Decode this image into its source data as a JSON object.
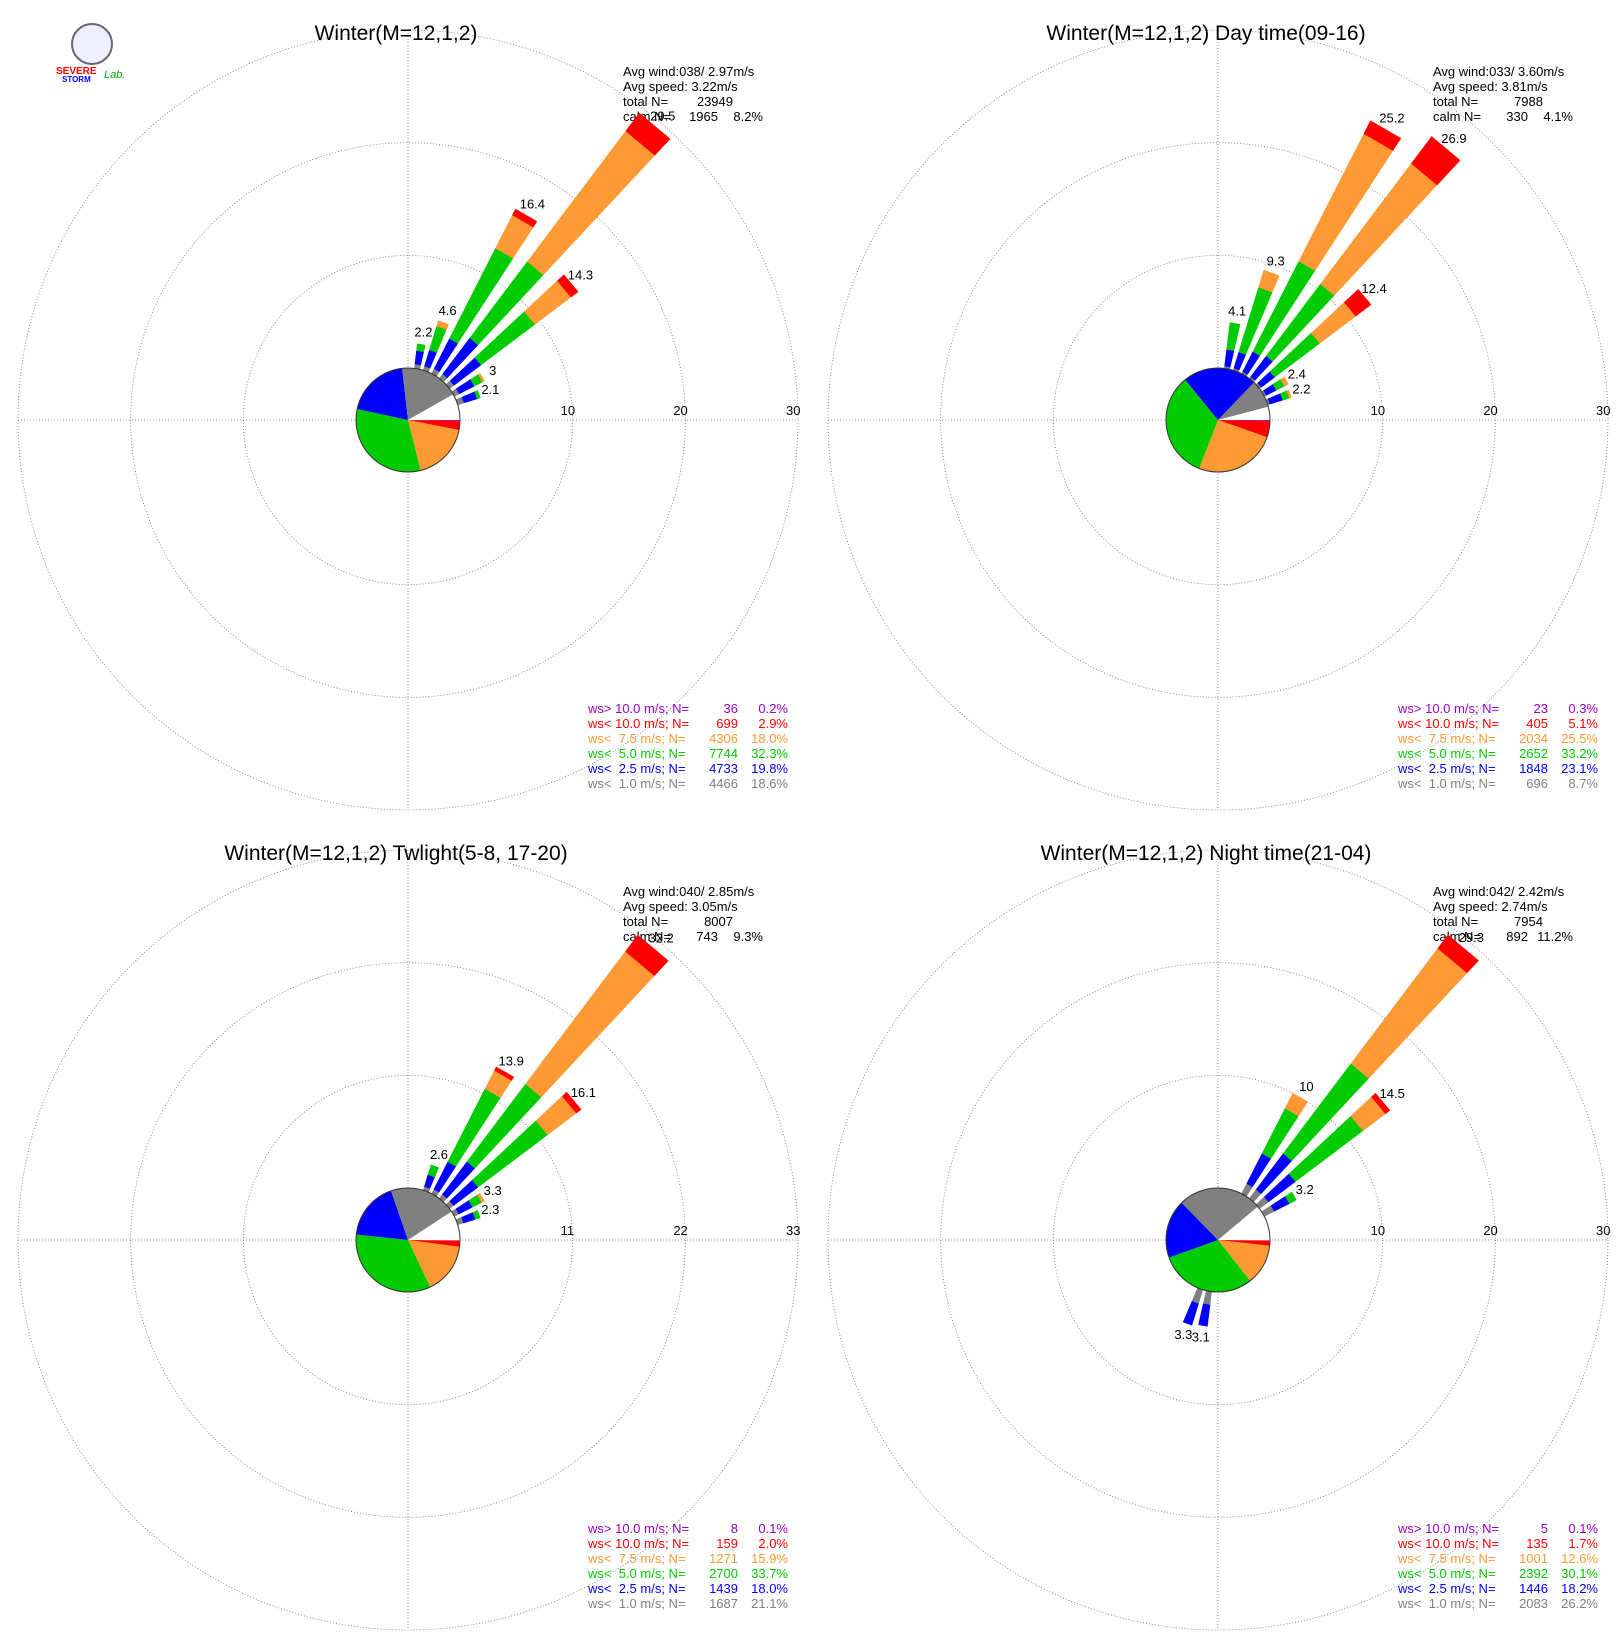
{
  "logo": [
    "SEVERE",
    "STORM",
    "Lab."
  ],
  "chart_data": [
    {
      "type": "windrose",
      "title": "Winter(M=12,1,2)",
      "stats": [
        "Avg wind:038/ 2.97m/s",
        "Avg speed: 3.22m/s"
      ],
      "total": {
        "label": "total N=",
        "n": 23949
      },
      "calm": {
        "label": "calm N=",
        "n": 1965,
        "value": 8.2,
        "value_label": "8.2%"
      },
      "classes": [
        "ws> 10.0 m/s; N=",
        "ws< 10.0 m/s; N=",
        "ws<  7.5 m/s; N=",
        "ws<  5.0 m/s; N=",
        "ws<  2.5 m/s; N=",
        "ws<  1.0 m/s; N="
      ],
      "colors": [
        "#9900cc",
        "#ff0000",
        "#ff9933",
        "#00cc00",
        "#0000ff",
        "#808080"
      ],
      "counts": [
        36,
        699,
        4306,
        7744,
        4733,
        4466
      ],
      "values": [
        0.2,
        2.9,
        18.0,
        32.3,
        19.8,
        18.6
      ],
      "value_labels": [
        "0.2%",
        "2.9%",
        "18.0%",
        "32.3%",
        "19.8%",
        "18.6%"
      ],
      "rlim": [
        0,
        30
      ],
      "rticks": [
        10,
        20,
        30
      ],
      "bars": [
        {
          "direction": 10,
          "total": 2.2,
          "values": [
            0,
            0,
            0,
            0.6,
            1.2,
            0.4
          ]
        },
        {
          "direction": 20,
          "total": 4.6,
          "values": [
            0,
            0,
            0.5,
            2.2,
            1.5,
            0.4
          ]
        },
        {
          "direction": 30,
          "total": 16.4,
          "values": [
            0,
            0.6,
            3.3,
            9,
            3,
            0.5
          ]
        },
        {
          "direction": 40,
          "total": 29.5,
          "values": [
            0,
            2,
            14.5,
            8.5,
            4,
            0.5
          ]
        },
        {
          "direction": 50,
          "total": 14.3,
          "values": [
            0,
            0.8,
            4,
            6,
            3,
            0.5
          ]
        },
        {
          "direction": 60,
          "total": 3.0,
          "values": [
            0,
            0,
            0.2,
            0.8,
            1.5,
            0.5
          ]
        },
        {
          "direction": 70,
          "total": 2.1,
          "values": [
            0,
            0,
            0,
            0.3,
            1.2,
            0.6
          ]
        }
      ]
    },
    {
      "type": "windrose",
      "title": "Winter(M=12,1,2) Day time(09-16)",
      "stats": [
        "Avg wind:033/ 3.60m/s",
        "Avg speed: 3.81m/s"
      ],
      "total": {
        "label": "total N=",
        "n": 7988
      },
      "calm": {
        "label": "calm N=",
        "n": 330,
        "value": 4.1,
        "value_label": "4.1%"
      },
      "classes": [
        "ws> 10.0 m/s; N=",
        "ws< 10.0 m/s; N=",
        "ws<  7.5 m/s; N=",
        "ws<  5.0 m/s; N=",
        "ws<  2.5 m/s; N=",
        "ws<  1.0 m/s; N="
      ],
      "colors": [
        "#9900cc",
        "#ff0000",
        "#ff9933",
        "#00cc00",
        "#0000ff",
        "#808080"
      ],
      "counts": [
        23,
        405,
        2034,
        2652,
        1848,
        696
      ],
      "values": [
        0.3,
        5.1,
        25.5,
        33.2,
        23.1,
        8.7
      ],
      "value_labels": [
        "0.3%",
        "5.1%",
        "25.5%",
        "33.2%",
        "23.1%",
        "8.7%"
      ],
      "rlim": [
        0,
        30
      ],
      "rticks": [
        10,
        20,
        30
      ],
      "bars": [
        {
          "direction": 10,
          "total": 4.1,
          "values": [
            0,
            0,
            0,
            2.4,
            1.5,
            0.2
          ]
        },
        {
          "direction": 20,
          "total": 9.3,
          "values": [
            0,
            0,
            1.6,
            6,
            1.5,
            0.2
          ]
        },
        {
          "direction": 30,
          "total": 25.2,
          "values": [
            0,
            1.3,
            12.7,
            9,
            2,
            0.2
          ]
        },
        {
          "direction": 40,
          "total": 26.9,
          "values": [
            0,
            3,
            13.4,
            8,
            2.3,
            0.2
          ]
        },
        {
          "direction": 50,
          "total": 12.4,
          "values": [
            0,
            1.7,
            4,
            5,
            1.5,
            0.2
          ]
        },
        {
          "direction": 60,
          "total": 2.4,
          "values": [
            0,
            0,
            0.4,
            0.8,
            1,
            0.2
          ]
        },
        {
          "direction": 70,
          "total": 2.2,
          "values": [
            0,
            0,
            0.2,
            0.6,
            1.2,
            0.2
          ]
        }
      ]
    },
    {
      "type": "windrose",
      "title": "Winter(M=12,1,2) Twlight(5-8, 17-20)",
      "stats": [
        "Avg wind:040/ 2.85m/s",
        "Avg speed: 3.05m/s"
      ],
      "total": {
        "label": "total N=",
        "n": 8007
      },
      "calm": {
        "label": "calm N=",
        "n": 743,
        "value": 9.3,
        "value_label": "9.3%"
      },
      "classes": [
        "ws> 10.0 m/s; N=",
        "ws< 10.0 m/s; N=",
        "ws<  7.5 m/s; N=",
        "ws<  5.0 m/s; N=",
        "ws<  2.5 m/s; N=",
        "ws<  1.0 m/s; N="
      ],
      "colors": [
        "#9900cc",
        "#ff0000",
        "#ff9933",
        "#00cc00",
        "#0000ff",
        "#808080"
      ],
      "counts": [
        8,
        159,
        1271,
        2700,
        1439,
        1687
      ],
      "values": [
        0.1,
        2.0,
        15.9,
        33.7,
        18.0,
        21.1
      ],
      "value_labels": [
        "0.1%",
        "2.0%",
        "15.9%",
        "33.7%",
        "18.0%",
        "21.1%"
      ],
      "rlim": [
        0,
        33
      ],
      "rticks": [
        11,
        22,
        33
      ],
      "bars": [
        {
          "direction": 20,
          "total": 2.6,
          "values": [
            0,
            0,
            0,
            1,
            1.2,
            0.4
          ]
        },
        {
          "direction": 30,
          "total": 13.9,
          "values": [
            0,
            0.4,
            2,
            8,
            3,
            0.5
          ]
        },
        {
          "direction": 40,
          "total": 32.2,
          "values": [
            0,
            2,
            16.2,
            9.5,
            4,
            0.5
          ]
        },
        {
          "direction": 50,
          "total": 16.1,
          "values": [
            0,
            0.6,
            3.5,
            8.5,
            3,
            0.5
          ]
        },
        {
          "direction": 60,
          "total": 3.3,
          "values": [
            0,
            0,
            0.3,
            1,
            1.5,
            0.5
          ]
        },
        {
          "direction": 70,
          "total": 2.3,
          "values": [
            0,
            0,
            0,
            0.5,
            1.2,
            0.6
          ]
        }
      ]
    },
    {
      "type": "windrose",
      "title": "Winter(M=12,1,2) Night time(21-04)",
      "stats": [
        "Avg wind:042/ 2.42m/s",
        "Avg speed: 2.74m/s"
      ],
      "total": {
        "label": "total N=",
        "n": 7954
      },
      "calm": {
        "label": "calm N=",
        "n": 892,
        "value": 11.2,
        "value_label": "11.2%"
      },
      "classes": [
        "ws> 10.0 m/s; N=",
        "ws< 10.0 m/s; N=",
        "ws<  7.5 m/s; N=",
        "ws<  5.0 m/s; N=",
        "ws<  2.5 m/s; N=",
        "ws<  1.0 m/s; N="
      ],
      "colors": [
        "#9900cc",
        "#ff0000",
        "#ff9933",
        "#00cc00",
        "#0000ff",
        "#808080"
      ],
      "counts": [
        5,
        135,
        1001,
        2392,
        1446,
        2083
      ],
      "values": [
        0.1,
        1.7,
        12.6,
        30.1,
        18.2,
        26.2
      ],
      "value_labels": [
        "0.1%",
        "1.7%",
        "12.6%",
        "30.1%",
        "18.2%",
        "26.2%"
      ],
      "rlim": [
        0,
        30
      ],
      "rticks": [
        10,
        20,
        30
      ],
      "bars": [
        {
          "direction": 30,
          "total": 10.0,
          "values": [
            0,
            0,
            1.5,
            4.5,
            3,
            1
          ]
        },
        {
          "direction": 40,
          "total": 29.3,
          "values": [
            0,
            1.5,
            12.8,
            10,
            4,
            1
          ]
        },
        {
          "direction": 50,
          "total": 14.5,
          "values": [
            0,
            0.5,
            2.5,
            7.5,
            3,
            1
          ]
        },
        {
          "direction": 60,
          "total": 3.2,
          "values": [
            0,
            0,
            0,
            0.7,
            1.5,
            1
          ]
        },
        {
          "direction": 190,
          "total": 3.1,
          "values": [
            0,
            0,
            0,
            0,
            1.9,
            1.2
          ]
        },
        {
          "direction": 200,
          "total": 3.3,
          "values": [
            0,
            0,
            0,
            0,
            2,
            1.3
          ]
        }
      ]
    }
  ]
}
